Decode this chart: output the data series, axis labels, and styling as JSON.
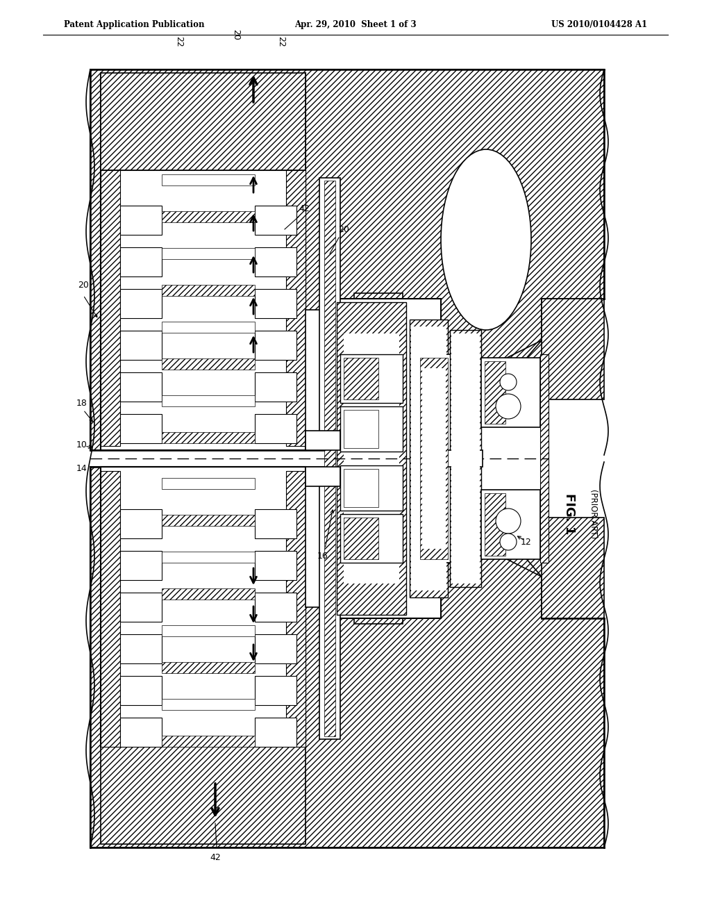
{
  "title_left": "Patent Application Publication",
  "title_center": "Apr. 29, 2010  Sheet 1 of 3",
  "title_right": "US 2010/0104428 A1",
  "fig_label": "FIG. 1",
  "fig_sublabel": "(PRIOR ART)",
  "background_color": "#ffffff"
}
